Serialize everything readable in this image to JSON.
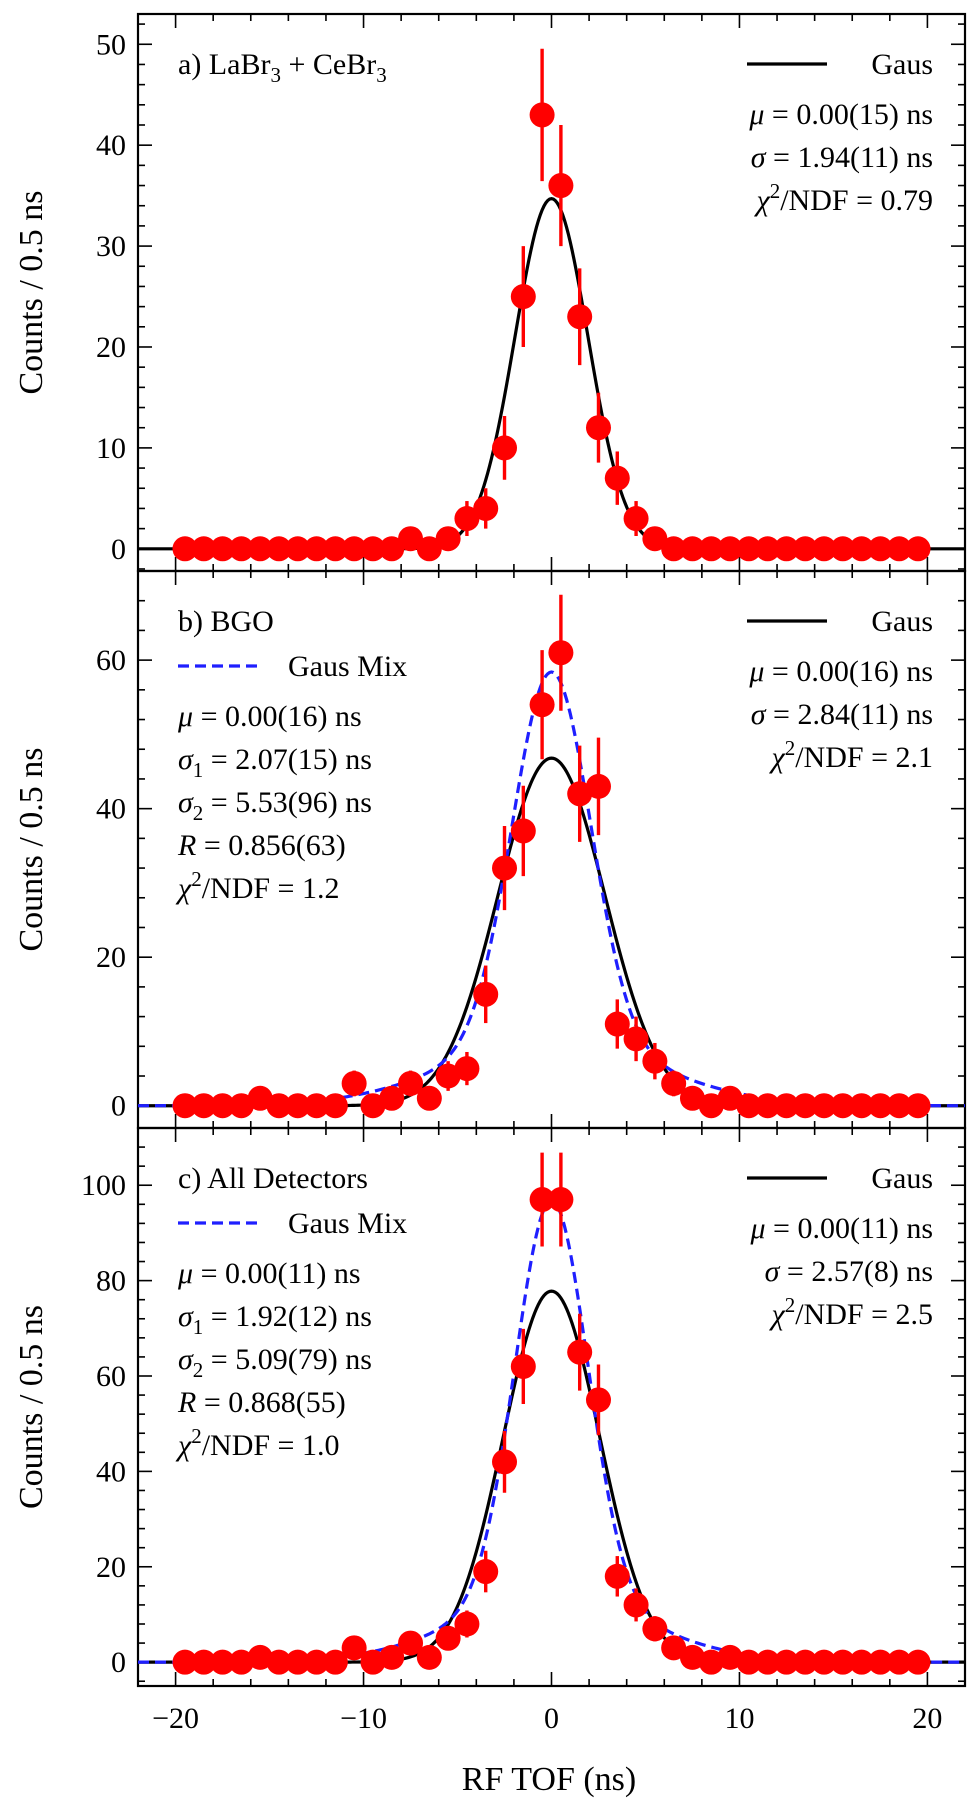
{
  "figure": {
    "xlabel": "RF TOF (ns)",
    "ylabel": "Counts / 0.5 ns",
    "x_ticks": [
      -20,
      -10,
      0,
      10,
      20
    ]
  },
  "colors": {
    "data": "#ff0000",
    "gaus": "#000000",
    "gaus_mix": "#1f1fff"
  },
  "chart_data": [
    {
      "type": "scatter",
      "panel": "a",
      "title": "a) LaBr3 + CeBr3",
      "xlim": [
        -22,
        22
      ],
      "ylim": [
        -2.2,
        53
      ],
      "y_ticks": [
        0,
        10,
        20,
        30,
        40,
        50
      ],
      "x": [
        -19.5,
        -18.5,
        -17.5,
        -16.5,
        -15.5,
        -14.5,
        -13.5,
        -12.5,
        -11.5,
        -10.5,
        -9.5,
        -8.5,
        -7.5,
        -6.5,
        -5.5,
        -4.5,
        -3.5,
        -2.5,
        -1.5,
        -0.5,
        0.5,
        1.5,
        2.5,
        3.5,
        4.5,
        5.5,
        6.5,
        7.5,
        8.5,
        9.5,
        10.5,
        11.5,
        12.5,
        13.5,
        14.5,
        15.5,
        16.5,
        17.5,
        18.5,
        19.5
      ],
      "y": [
        0,
        0,
        0,
        0,
        0,
        0,
        0,
        0,
        0,
        0,
        0,
        0,
        1,
        0,
        1,
        3,
        4,
        10,
        25,
        43,
        36,
        23,
        12,
        7,
        3,
        1,
        0,
        0,
        0,
        0,
        0,
        0,
        0,
        0,
        0,
        0,
        0,
        0,
        0,
        0
      ],
      "legend": {
        "gaus_label": "Gaus",
        "gaus_mix_label": ""
      },
      "fit_text": [
        "μ = 0.00(15) ns",
        "σ = 1.94(11) ns",
        "χ2/NDF = 0.79"
      ],
      "mix_text": [],
      "fits": {
        "gaus": {
          "mu": 0.0,
          "sigma": 1.94,
          "amp": 34.7
        },
        "gaus_mix": null
      }
    },
    {
      "type": "scatter",
      "panel": "b",
      "title": "b) BGO",
      "xlim": [
        -22,
        22
      ],
      "ylim": [
        -3,
        72
      ],
      "y_ticks": [
        0,
        20,
        40,
        60
      ],
      "x": [
        -19.5,
        -18.5,
        -17.5,
        -16.5,
        -15.5,
        -14.5,
        -13.5,
        -12.5,
        -11.5,
        -10.5,
        -9.5,
        -8.5,
        -7.5,
        -6.5,
        -5.5,
        -4.5,
        -3.5,
        -2.5,
        -1.5,
        -0.5,
        0.5,
        1.5,
        2.5,
        3.5,
        4.5,
        5.5,
        6.5,
        7.5,
        8.5,
        9.5,
        10.5,
        11.5,
        12.5,
        13.5,
        14.5,
        15.5,
        16.5,
        17.5,
        18.5,
        19.5
      ],
      "y": [
        0,
        0,
        0,
        0,
        1,
        0,
        0,
        0,
        0,
        3,
        0,
        1,
        3,
        1,
        4,
        5,
        15,
        32,
        37,
        54,
        61,
        42,
        43,
        11,
        9,
        6,
        3,
        1,
        0,
        1,
        0,
        0,
        0,
        0,
        0,
        0,
        0,
        0,
        0,
        0
      ],
      "legend": {
        "gaus_label": "Gaus",
        "gaus_mix_label": "Gaus Mix"
      },
      "fit_text": [
        "μ = 0.00(16) ns",
        "σ = 2.84(11) ns",
        "χ2/NDF = 2.1"
      ],
      "mix_text": [
        "μ = 0.00(16) ns",
        "σ1 = 2.07(15) ns",
        "σ2 = 5.53(96) ns",
        "R = 0.856(63)",
        "χ2/NDF = 1.2"
      ],
      "fits": {
        "gaus": {
          "mu": 0.0,
          "sigma": 2.84,
          "amp": 46.8
        },
        "gaus_mix": {
          "mu": 0.0,
          "sigma1": 2.07,
          "sigma2": 5.53,
          "R": 0.856,
          "amp": 58.4
        }
      }
    },
    {
      "type": "scatter",
      "panel": "c",
      "title": "c) All Detectors",
      "xlim": [
        -22,
        22
      ],
      "ylim": [
        -5,
        112
      ],
      "y_ticks": [
        0,
        20,
        40,
        60,
        80,
        100
      ],
      "x": [
        -19.5,
        -18.5,
        -17.5,
        -16.5,
        -15.5,
        -14.5,
        -13.5,
        -12.5,
        -11.5,
        -10.5,
        -9.5,
        -8.5,
        -7.5,
        -6.5,
        -5.5,
        -4.5,
        -3.5,
        -2.5,
        -1.5,
        -0.5,
        0.5,
        1.5,
        2.5,
        3.5,
        4.5,
        5.5,
        6.5,
        7.5,
        8.5,
        9.5,
        10.5,
        11.5,
        12.5,
        13.5,
        14.5,
        15.5,
        16.5,
        17.5,
        18.5,
        19.5
      ],
      "y": [
        0,
        0,
        0,
        0,
        1,
        0,
        0,
        0,
        0,
        3,
        0,
        1,
        4,
        1,
        5,
        8,
        19,
        42,
        62,
        97,
        97,
        65,
        55,
        18,
        12,
        7,
        3,
        1,
        0,
        1,
        0,
        0,
        0,
        0,
        0,
        0,
        0,
        0,
        0,
        0
      ],
      "legend": {
        "gaus_label": "Gaus",
        "gaus_mix_label": "Gaus Mix"
      },
      "fit_text": [
        "μ = 0.00(11) ns",
        "σ = 2.57(8) ns",
        "χ2/NDF = 2.5"
      ],
      "mix_text": [
        "μ = 0.00(11) ns",
        "σ1 = 1.92(12) ns",
        "σ2 = 5.09(79) ns",
        "R = 0.868(55)",
        "χ2/NDF = 1.0"
      ],
      "fits": {
        "gaus": {
          "mu": 0.0,
          "sigma": 2.57,
          "amp": 77.8
        },
        "gaus_mix": {
          "mu": 0.0,
          "sigma1": 1.92,
          "sigma2": 5.09,
          "R": 0.868,
          "amp": 96.8
        }
      }
    }
  ]
}
